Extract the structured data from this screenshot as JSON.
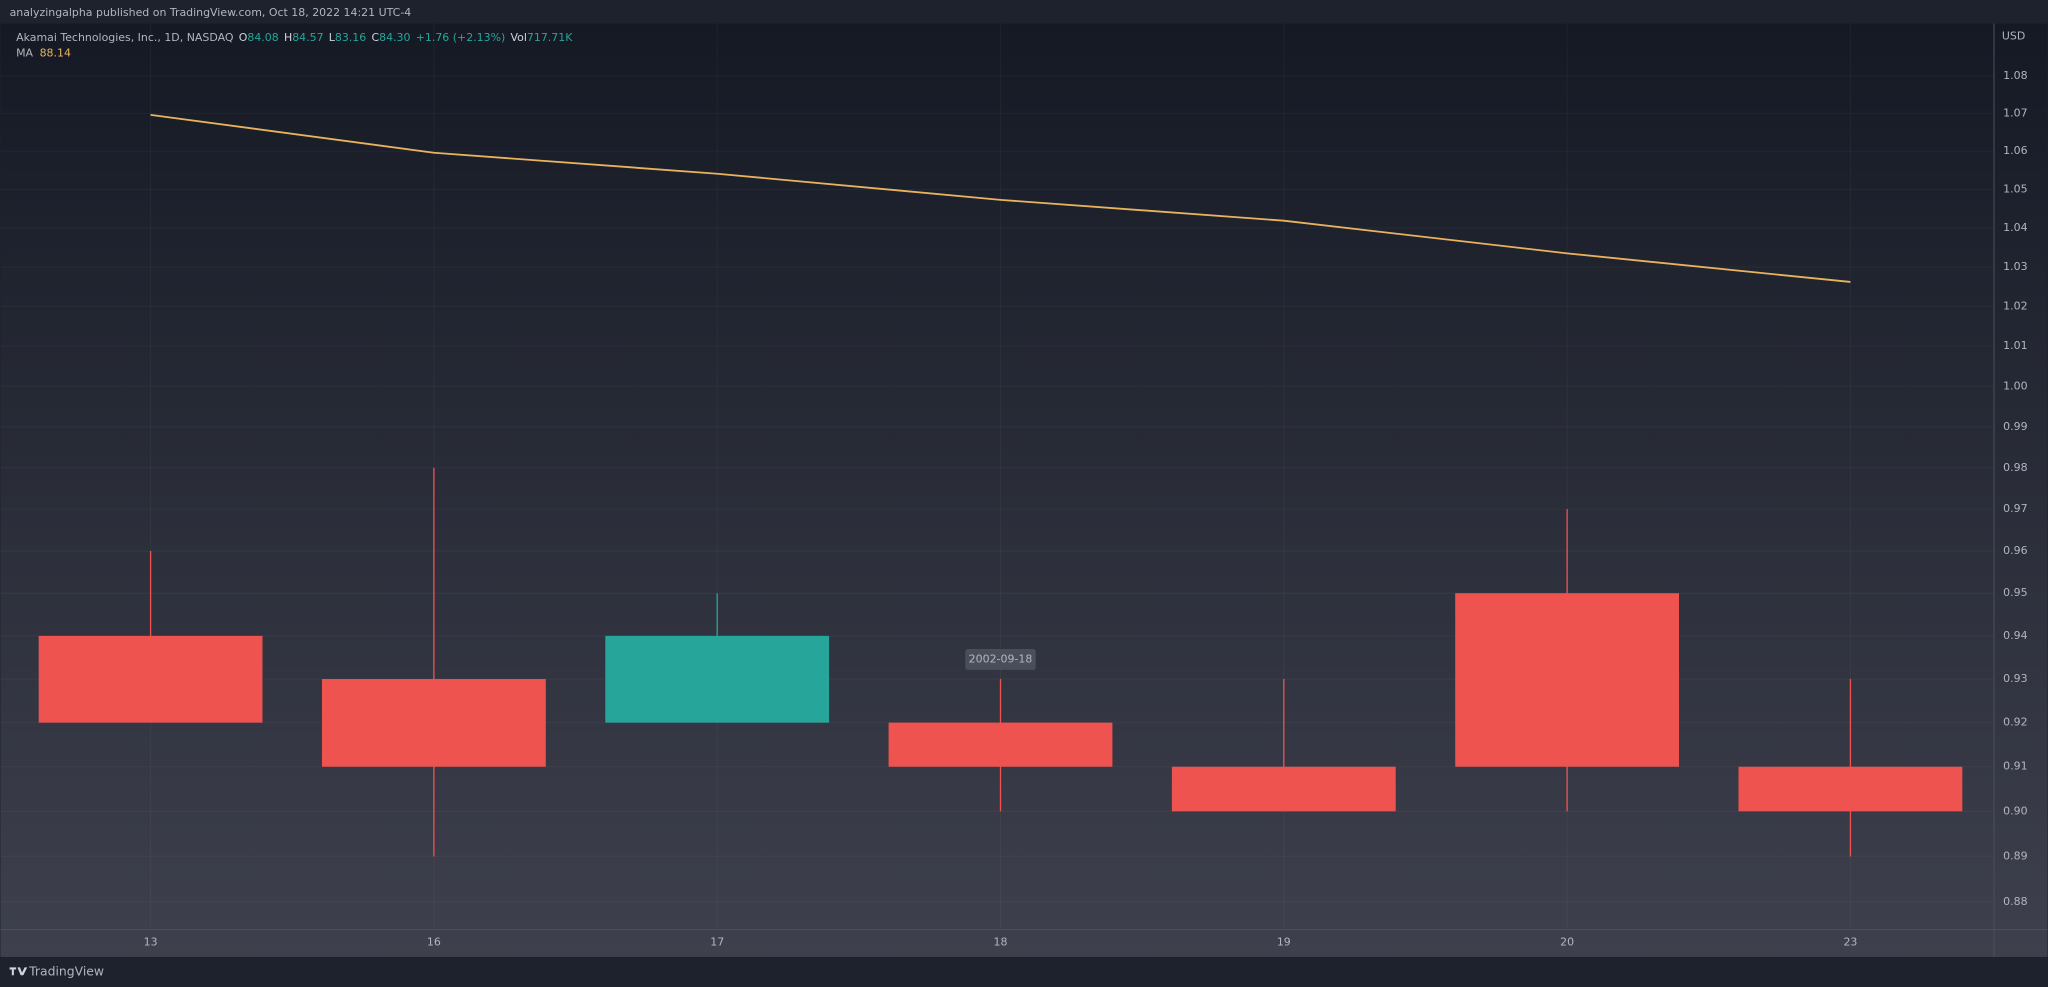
{
  "header": {
    "published": "analyzingalpha published on TradingView.com, Oct 18, 2022 14:21 UTC-4"
  },
  "legend": {
    "symbol": "Akamai Technologies, Inc., 1D, NASDAQ",
    "open_label": "O",
    "open": "84.08",
    "high_label": "H",
    "high": "84.57",
    "low_label": "L",
    "low": "83.16",
    "close_label": "C",
    "close": "84.30",
    "change": "+1.76 (+2.13%)",
    "volume_label": "Vol",
    "volume": "717.71K",
    "ma_label": "MA",
    "ma_value": "88.14"
  },
  "chart_data": {
    "type": "candlestick",
    "categories": [
      "13",
      "16",
      "17",
      "18",
      "19",
      "20",
      "23"
    ],
    "open": [
      0.94,
      0.93,
      0.92,
      0.92,
      0.91,
      0.95,
      0.91
    ],
    "high": [
      0.96,
      0.98,
      0.95,
      0.93,
      0.93,
      0.97,
      0.93
    ],
    "low": [
      0.92,
      0.89,
      0.92,
      0.9,
      0.9,
      0.9,
      0.89
    ],
    "close": [
      0.92,
      0.91,
      0.94,
      0.91,
      0.9,
      0.91,
      0.9
    ],
    "up_color": "#26a69a",
    "down_color": "#ef5350",
    "series": [
      {
        "name": "MA",
        "color": "#e9b35e",
        "values": [
          1.0696,
          1.0596,
          1.0541,
          1.0473,
          1.0419,
          1.0335,
          1.0262
        ]
      }
    ],
    "ylim": [
      0.874,
      1.0941
    ],
    "yticks": [
      0.88,
      0.89,
      {
        "value": 0.9,
        "label": "0.90"
      },
      0.91,
      0.92,
      0.93,
      0.94,
      0.95,
      0.96,
      0.97,
      0.98,
      0.99,
      {
        "value": 1,
        "label": "1.00"
      },
      1.01,
      1.02,
      1.03,
      1.04,
      1.05,
      1.06,
      1.07,
      1.08
    ],
    "log_scale": true,
    "grid": true,
    "y_axis_label": "USD",
    "tooltip": "2002-09-18"
  },
  "footer": {
    "brand": "TradingView"
  }
}
